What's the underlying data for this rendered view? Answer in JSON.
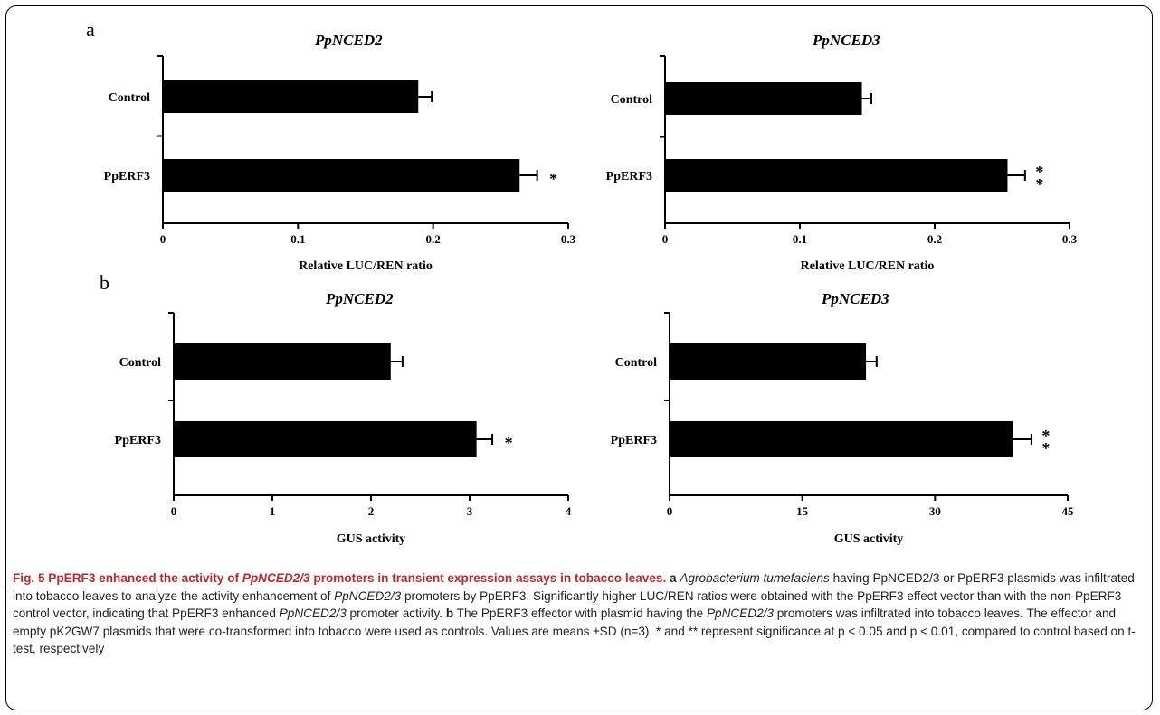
{
  "panels": [
    {
      "letter": "a"
    },
    {
      "letter": "b"
    }
  ],
  "chart_data": [
    {
      "type": "bar",
      "orientation": "horizontal",
      "panel": "a",
      "title": "PpNCED2",
      "categories": [
        "Control",
        "PpERF3"
      ],
      "values": [
        0.189,
        0.264
      ],
      "errors": [
        0.01,
        0.013
      ],
      "significance": [
        "",
        "*"
      ],
      "xlabel": "Relative LUC/REN ratio",
      "xlim": [
        0,
        0.3
      ],
      "ticks": [
        "0",
        "0.1",
        "0.2",
        "0.3"
      ]
    },
    {
      "type": "bar",
      "orientation": "horizontal",
      "panel": "a",
      "title": "PpNCED3",
      "categories": [
        "Control",
        "PpERF3"
      ],
      "values": [
        0.146,
        0.254
      ],
      "errors": [
        0.007,
        0.013
      ],
      "significance": [
        "",
        "**"
      ],
      "xlabel": "Relative LUC/REN ratio",
      "xlim": [
        0,
        0.3
      ],
      "ticks": [
        "0",
        "0.1",
        "0.2",
        "0.3"
      ]
    },
    {
      "type": "bar",
      "orientation": "horizontal",
      "panel": "b",
      "title": "PpNCED2",
      "categories": [
        "Control",
        "PpERF3"
      ],
      "values": [
        2.2,
        3.07
      ],
      "errors": [
        0.12,
        0.16
      ],
      "significance": [
        "",
        "*"
      ],
      "xlabel": "GUS activity",
      "xlim": [
        0,
        4
      ],
      "ticks": [
        "0",
        "1",
        "2",
        "3",
        "4"
      ]
    },
    {
      "type": "bar",
      "orientation": "horizontal",
      "panel": "b",
      "title": "PpNCED3",
      "categories": [
        "Control",
        "PpERF3"
      ],
      "values": [
        22.2,
        38.8
      ],
      "errors": [
        1.2,
        2.1
      ],
      "significance": [
        "",
        "**"
      ],
      "xlabel": "GUS activity",
      "xlim": [
        0,
        45
      ],
      "ticks": [
        "0",
        "15",
        "30",
        "45"
      ]
    }
  ],
  "caption": {
    "fig_label": "Fig. 5 PpERF3 enhanced the activity of ",
    "fig_label_it": "PpNCED2/3",
    "fig_label_end": " promoters in transient expression assays in tobacco leaves.",
    "a_letter": "a",
    "a_it1": "Agrobacterium tumefaciens",
    "a_text1": " having PpNCED2/3 or PpERF3 plasmids was infiltrated into tobacco leaves to analyze the activity enhancement of ",
    "a_it2": "PpNCED2/3",
    "a_text2": " promoters by PpERF3. Significantly higher LUC/REN ratios were obtained with the PpERF3 effect vector than with the non-PpERF3 control vector, indicating that PpERF3 enhanced ",
    "a_it3": "PpNCED2/3",
    "a_text3": " promoter activity.",
    "b_letter": "b",
    "b_text1": " The PpERF3 effector with plasmid having the ",
    "b_it1": "PpNCED2/3",
    "b_text2": " promoters was infiltrated into tobacco leaves. The effector and empty pK2GW7 plasmids that were co-transformed into tobacco were used as controls. Values are means ±SD (n=3), * and ** represent significance at p < 0.05 and p < 0.01, compared to control based on t-test, respectively"
  }
}
